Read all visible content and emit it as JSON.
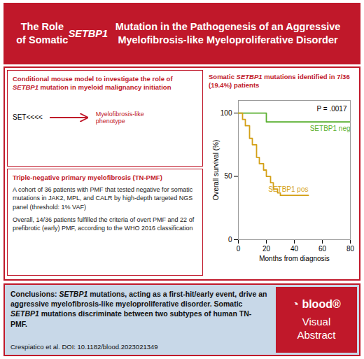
{
  "chart_data": {
    "type": "line",
    "line_style": "step",
    "color": "#c0182a",
    "title": "The Role of Somatic SETBP1 Mutation in the Pathogenesis of an Aggressive Myelofibrosis-like Myeloproliferative Disorder",
    "xlabel": "Months from diagnosis",
    "ylabel": "Overall survival (%)",
    "xlim": [
      0,
      80
    ],
    "xticks": [
      0,
      20,
      40,
      60,
      80
    ],
    "ylim": [
      0,
      110
    ],
    "yticks": [
      0,
      50,
      100
    ],
    "series": [
      {
        "name": "SETBP1 neg",
        "color": "#5ab030",
        "x": [
          0,
          5,
          20,
          22,
          40,
          45,
          60,
          80
        ],
        "values": [
          100,
          100,
          93,
          93,
          93,
          93,
          93,
          93
        ]
      },
      {
        "name": "SETBP1 pos",
        "color": "#d4a017",
        "x": [
          0,
          3,
          5,
          8,
          10,
          13,
          15,
          18,
          20,
          23,
          25,
          28,
          30,
          35,
          50
        ],
        "values": [
          100,
          95,
          90,
          80,
          75,
          65,
          60,
          55,
          50,
          45,
          40,
          37,
          35,
          35,
          35
        ]
      }
    ],
    "annotations": [
      "Conditional mouse model to investigate the role of SETBP1 mutation in myeloid malignancy initiation",
      "SET<<<<",
      "Myelofibrosis-like\nphenotype",
      "Triple-negative primary myelofibrosis (TN-PMF)",
      "A cohort of 36 patients with PMF that tested negative for somatic mutations in JAK2, MPL, and CALR by high-depth targeted NGS panel (threshold: 1% VAF)",
      "Overall, 14/36 patients fulfilled the criteria of overt PMF and 22 of prefibrotic (early) PMF, according to the WHO 2016 classification",
      "Somatic SETBP1 mutations identified in 7/36 (19.4%) patients",
      "P = .0017",
      "Conclusions: SETBP1 mutations, acting as a first-hit/early event, drive an aggressive myelofibrosis-like myeloproliferative disorder. Somatic SETBP1 mutations discriminate between two subtypes of human TN-PMF.",
      "Crespiatico et al. DOI: 10.1182/blood.2023021349",
      "◔ blood®",
      "Visual\nAbstract"
    ]
  }
}
